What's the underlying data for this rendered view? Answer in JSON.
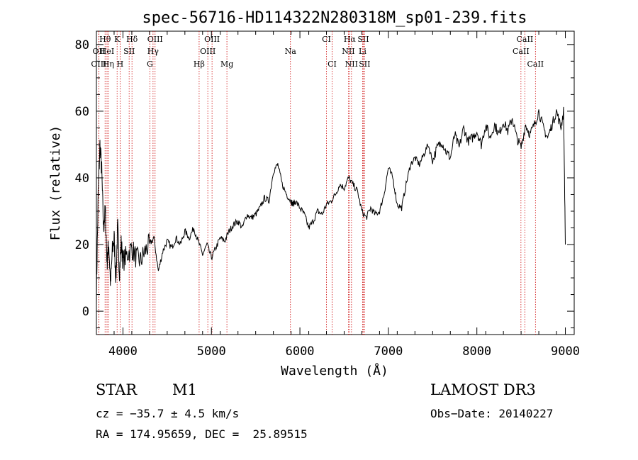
{
  "chart_data": {
    "type": "line",
    "title": "spec-56716-HD114322N280318M_sp01-239.fits",
    "xlabel": "Wavelength (Å)",
    "ylabel": "Flux (relative)",
    "xlim": [
      3700,
      9100
    ],
    "ylim": [
      -7,
      84
    ],
    "xticks": [
      4000,
      5000,
      6000,
      7000,
      8000,
      9000
    ],
    "yticks": [
      0,
      20,
      40,
      60,
      80
    ],
    "grid": false,
    "line_color": "#000000",
    "marker_color": "#cc0000",
    "series": [
      {
        "x": [
          3700,
          3720,
          3740,
          3760,
          3780,
          3800,
          3820,
          3840,
          3860,
          3880,
          3900,
          3920,
          3940,
          3960,
          3980,
          4000,
          4050,
          4100,
          4150,
          4200,
          4250,
          4300,
          4350,
          4400,
          4450,
          4500,
          4550,
          4600,
          4650,
          4700,
          4750,
          4800,
          4850,
          4900,
          4950,
          5000,
          5050,
          5100,
          5150,
          5200,
          5250,
          5300,
          5350,
          5400,
          5450,
          5500,
          5550,
          5600,
          5650,
          5700,
          5750,
          5800,
          5850,
          5900,
          5920,
          5950,
          6000,
          6050,
          6100,
          6150,
          6200,
          6250,
          6300,
          6350,
          6400,
          6450,
          6500,
          6550,
          6600,
          6650,
          6700,
          6750,
          6800,
          6850,
          6900,
          6950,
          7000,
          7050,
          7100,
          7150,
          7200,
          7250,
          7300,
          7350,
          7400,
          7450,
          7500,
          7550,
          7600,
          7650,
          7700,
          7750,
          7800,
          7850,
          7900,
          7950,
          8000,
          8050,
          8100,
          8150,
          8200,
          8250,
          8300,
          8350,
          8400,
          8450,
          8500,
          8550,
          8600,
          8650,
          8700,
          8750,
          8800,
          8850,
          8900,
          8950,
          8980,
          9000
        ],
        "y": [
          5,
          35,
          50,
          42,
          25,
          30,
          15,
          20,
          8,
          18,
          22,
          10,
          25,
          12,
          20,
          15,
          17,
          19,
          16,
          15,
          18,
          20,
          22,
          12,
          18,
          21,
          19,
          22,
          20,
          24,
          22,
          25,
          21,
          17,
          20,
          16,
          19,
          22,
          21,
          24,
          26,
          27,
          25,
          29,
          28,
          29,
          31,
          34,
          33,
          42,
          44,
          38,
          35,
          33,
          32,
          33,
          31,
          29,
          25,
          27,
          30,
          29,
          32,
          33,
          35,
          38,
          37,
          40,
          38,
          36,
          30,
          28,
          31,
          29,
          30,
          35,
          43,
          40,
          32,
          31,
          38,
          44,
          46,
          44,
          47,
          50,
          45,
          49,
          51,
          48,
          46,
          53,
          49,
          55,
          51,
          52,
          54,
          50,
          56,
          52,
          56,
          53,
          57,
          54,
          58,
          52,
          49,
          56,
          53,
          56,
          60,
          55,
          52,
          56,
          60,
          55,
          60,
          20
        ]
      }
    ],
    "spectral_lines": [
      {
        "label": "OII",
        "wavelength": 3727,
        "row": 1
      },
      {
        "label": "Hθ",
        "wavelength": 3798,
        "row": 0
      },
      {
        "label": "OIII",
        "wavelength": 3727,
        "row": 2
      },
      {
        "label": "HeI",
        "wavelength": 3820,
        "row": 1
      },
      {
        "label": "Hη",
        "wavelength": 3835,
        "row": 2
      },
      {
        "label": "K",
        "wavelength": 3934,
        "row": 0
      },
      {
        "label": "H",
        "wavelength": 3968,
        "row": 2
      },
      {
        "label": "SII",
        "wavelength": 4070,
        "row": 1
      },
      {
        "label": "Hδ",
        "wavelength": 4102,
        "row": 0
      },
      {
        "label": "OIII",
        "wavelength": 4363,
        "row": 0
      },
      {
        "label": "Hγ",
        "wavelength": 4340,
        "row": 1
      },
      {
        "label": "G",
        "wavelength": 4304,
        "row": 2
      },
      {
        "label": "OIII",
        "wavelength": 5007,
        "row": 0
      },
      {
        "label": "OIII",
        "wavelength": 4959,
        "row": 1
      },
      {
        "label": "Hβ",
        "wavelength": 4861,
        "row": 2
      },
      {
        "label": "Mg",
        "wavelength": 5175,
        "row": 2
      },
      {
        "label": "Na",
        "wavelength": 5893,
        "row": 1
      },
      {
        "label": "CI",
        "wavelength": 6300,
        "row": 0
      },
      {
        "label": "CI",
        "wavelength": 6364,
        "row": 2
      },
      {
        "label": "Hα",
        "wavelength": 6563,
        "row": 0
      },
      {
        "label": "NII",
        "wavelength": 6548,
        "row": 1
      },
      {
        "label": "NII",
        "wavelength": 6583,
        "row": 2
      },
      {
        "label": "SII",
        "wavelength": 6716,
        "row": 0
      },
      {
        "label": "Li",
        "wavelength": 6708,
        "row": 1
      },
      {
        "label": "SII",
        "wavelength": 6731,
        "row": 2
      },
      {
        "label": "CaII",
        "wavelength": 8542,
        "row": 0
      },
      {
        "label": "CaII",
        "wavelength": 8498,
        "row": 1
      },
      {
        "label": "CaII",
        "wavelength": 8662,
        "row": 2
      }
    ]
  },
  "info": {
    "class_label": "STAR",
    "subclass": "M1",
    "survey": "LAMOST DR3",
    "cz": "cz = −35.7 ± 4.5 km/s",
    "obs_date": "Obs−Date: 20140227",
    "coords": "RA = 174.95659, DEC =  25.89515"
  }
}
